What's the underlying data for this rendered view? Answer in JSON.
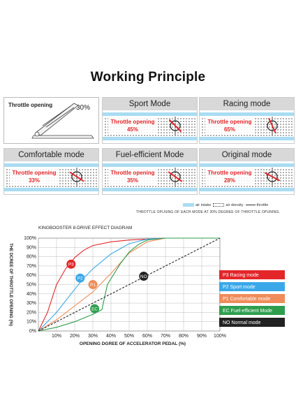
{
  "title": "Working Principle",
  "throttle_box": {
    "label": "Throttle opening",
    "percent": "30%"
  },
  "panels": [
    {
      "name": "Sport Mode",
      "text": "Throttle opening",
      "value": "45%",
      "angle": 45
    },
    {
      "name": "Racing mode",
      "text": "Throttle opening",
      "value": "65%",
      "angle": 65
    },
    {
      "name": "Comfortable mode",
      "text": "Throttle opening",
      "value": "33%",
      "angle": 33
    },
    {
      "name": "Fuel-efficient Mode",
      "text": "Throttle opening",
      "value": "35%",
      "angle": 35
    },
    {
      "name": "Original mode",
      "text": "Throttle opening",
      "value": "28%",
      "angle": 28
    }
  ],
  "legend_strip": {
    "air_intake": "air intake",
    "air_density": "air density",
    "throttle": "throttle"
  },
  "note": "THROTTLE OPLNING OF EACH MODE AT 30% DEGREE OF THROTTLE OPUNING.",
  "colors": {
    "panel_header": "#d8d8d8",
    "band": "#a9dcf2",
    "accent_red": "#e3262a"
  },
  "chart_data": {
    "type": "line",
    "title": "KINGBOOSTER 8-DRIVE EFFECT DIAGRAM",
    "xlabel": "OPENING DGREE OF ACCELERATOR PEDAL (%)",
    "ylabel": "THE DCREE OF THROTTLE OPENING (%)",
    "x_ticks": [
      "10%",
      "20%",
      "30%",
      "40%",
      "50%",
      "60%",
      "70%",
      "80%",
      "90%",
      "100%"
    ],
    "y_ticks": [
      "0%",
      "10%",
      "20%",
      "30%",
      "40%",
      "50%",
      "60%",
      "70%",
      "80%",
      "90%",
      "100%"
    ],
    "xlim": [
      0,
      100
    ],
    "ylim": [
      0,
      100
    ],
    "series": [
      {
        "name": "P3 Racing mode",
        "tag": "P3",
        "color": "#e3262a",
        "x": [
          0,
          5,
          10,
          15,
          20,
          25,
          30,
          40,
          50,
          60,
          70,
          80,
          90,
          100
        ],
        "y": [
          0,
          20,
          50,
          67,
          79,
          87,
          92,
          96,
          98,
          99,
          100,
          100,
          100,
          100
        ]
      },
      {
        "name": "P2 Sport mode",
        "tag": "P2",
        "color": "#3aa8e8",
        "x": [
          0,
          10,
          20,
          25,
          30,
          40,
          50,
          60,
          70,
          80,
          90,
          100
        ],
        "y": [
          0,
          20,
          45,
          57,
          67,
          83,
          94,
          99,
          100,
          100,
          100,
          100
        ]
      },
      {
        "name": "P1 Comfortable mode",
        "tag": "P1",
        "color": "#f08c5a",
        "x": [
          0,
          10,
          20,
          30,
          40,
          50,
          60,
          70,
          80,
          90,
          100
        ],
        "y": [
          0,
          12,
          27,
          42,
          62,
          84,
          96,
          100,
          100,
          100,
          100
        ]
      },
      {
        "name": "EC Fuel-efficient Mode",
        "tag": "EC",
        "color": "#2e9e4e",
        "x": [
          0,
          10,
          20,
          30,
          35,
          38,
          45,
          50,
          55,
          60,
          70,
          80,
          90,
          100
        ],
        "y": [
          0,
          4,
          10,
          18,
          23,
          50,
          72,
          85,
          93,
          98,
          100,
          100,
          100,
          100
        ]
      },
      {
        "name": "NO Normal mode",
        "tag": "NO",
        "color": "#222222",
        "dashed": true,
        "x": [
          0,
          100
        ],
        "y": [
          0,
          100
        ]
      }
    ],
    "markers": [
      {
        "tag": "P3",
        "x": 18,
        "y": 72
      },
      {
        "tag": "P2",
        "x": 23,
        "y": 57
      },
      {
        "tag": "P1",
        "x": 30,
        "y": 50
      },
      {
        "tag": "EC",
        "x": 31,
        "y": 24
      },
      {
        "tag": "NO",
        "x": 58,
        "y": 59
      }
    ],
    "legend_position": "right"
  }
}
